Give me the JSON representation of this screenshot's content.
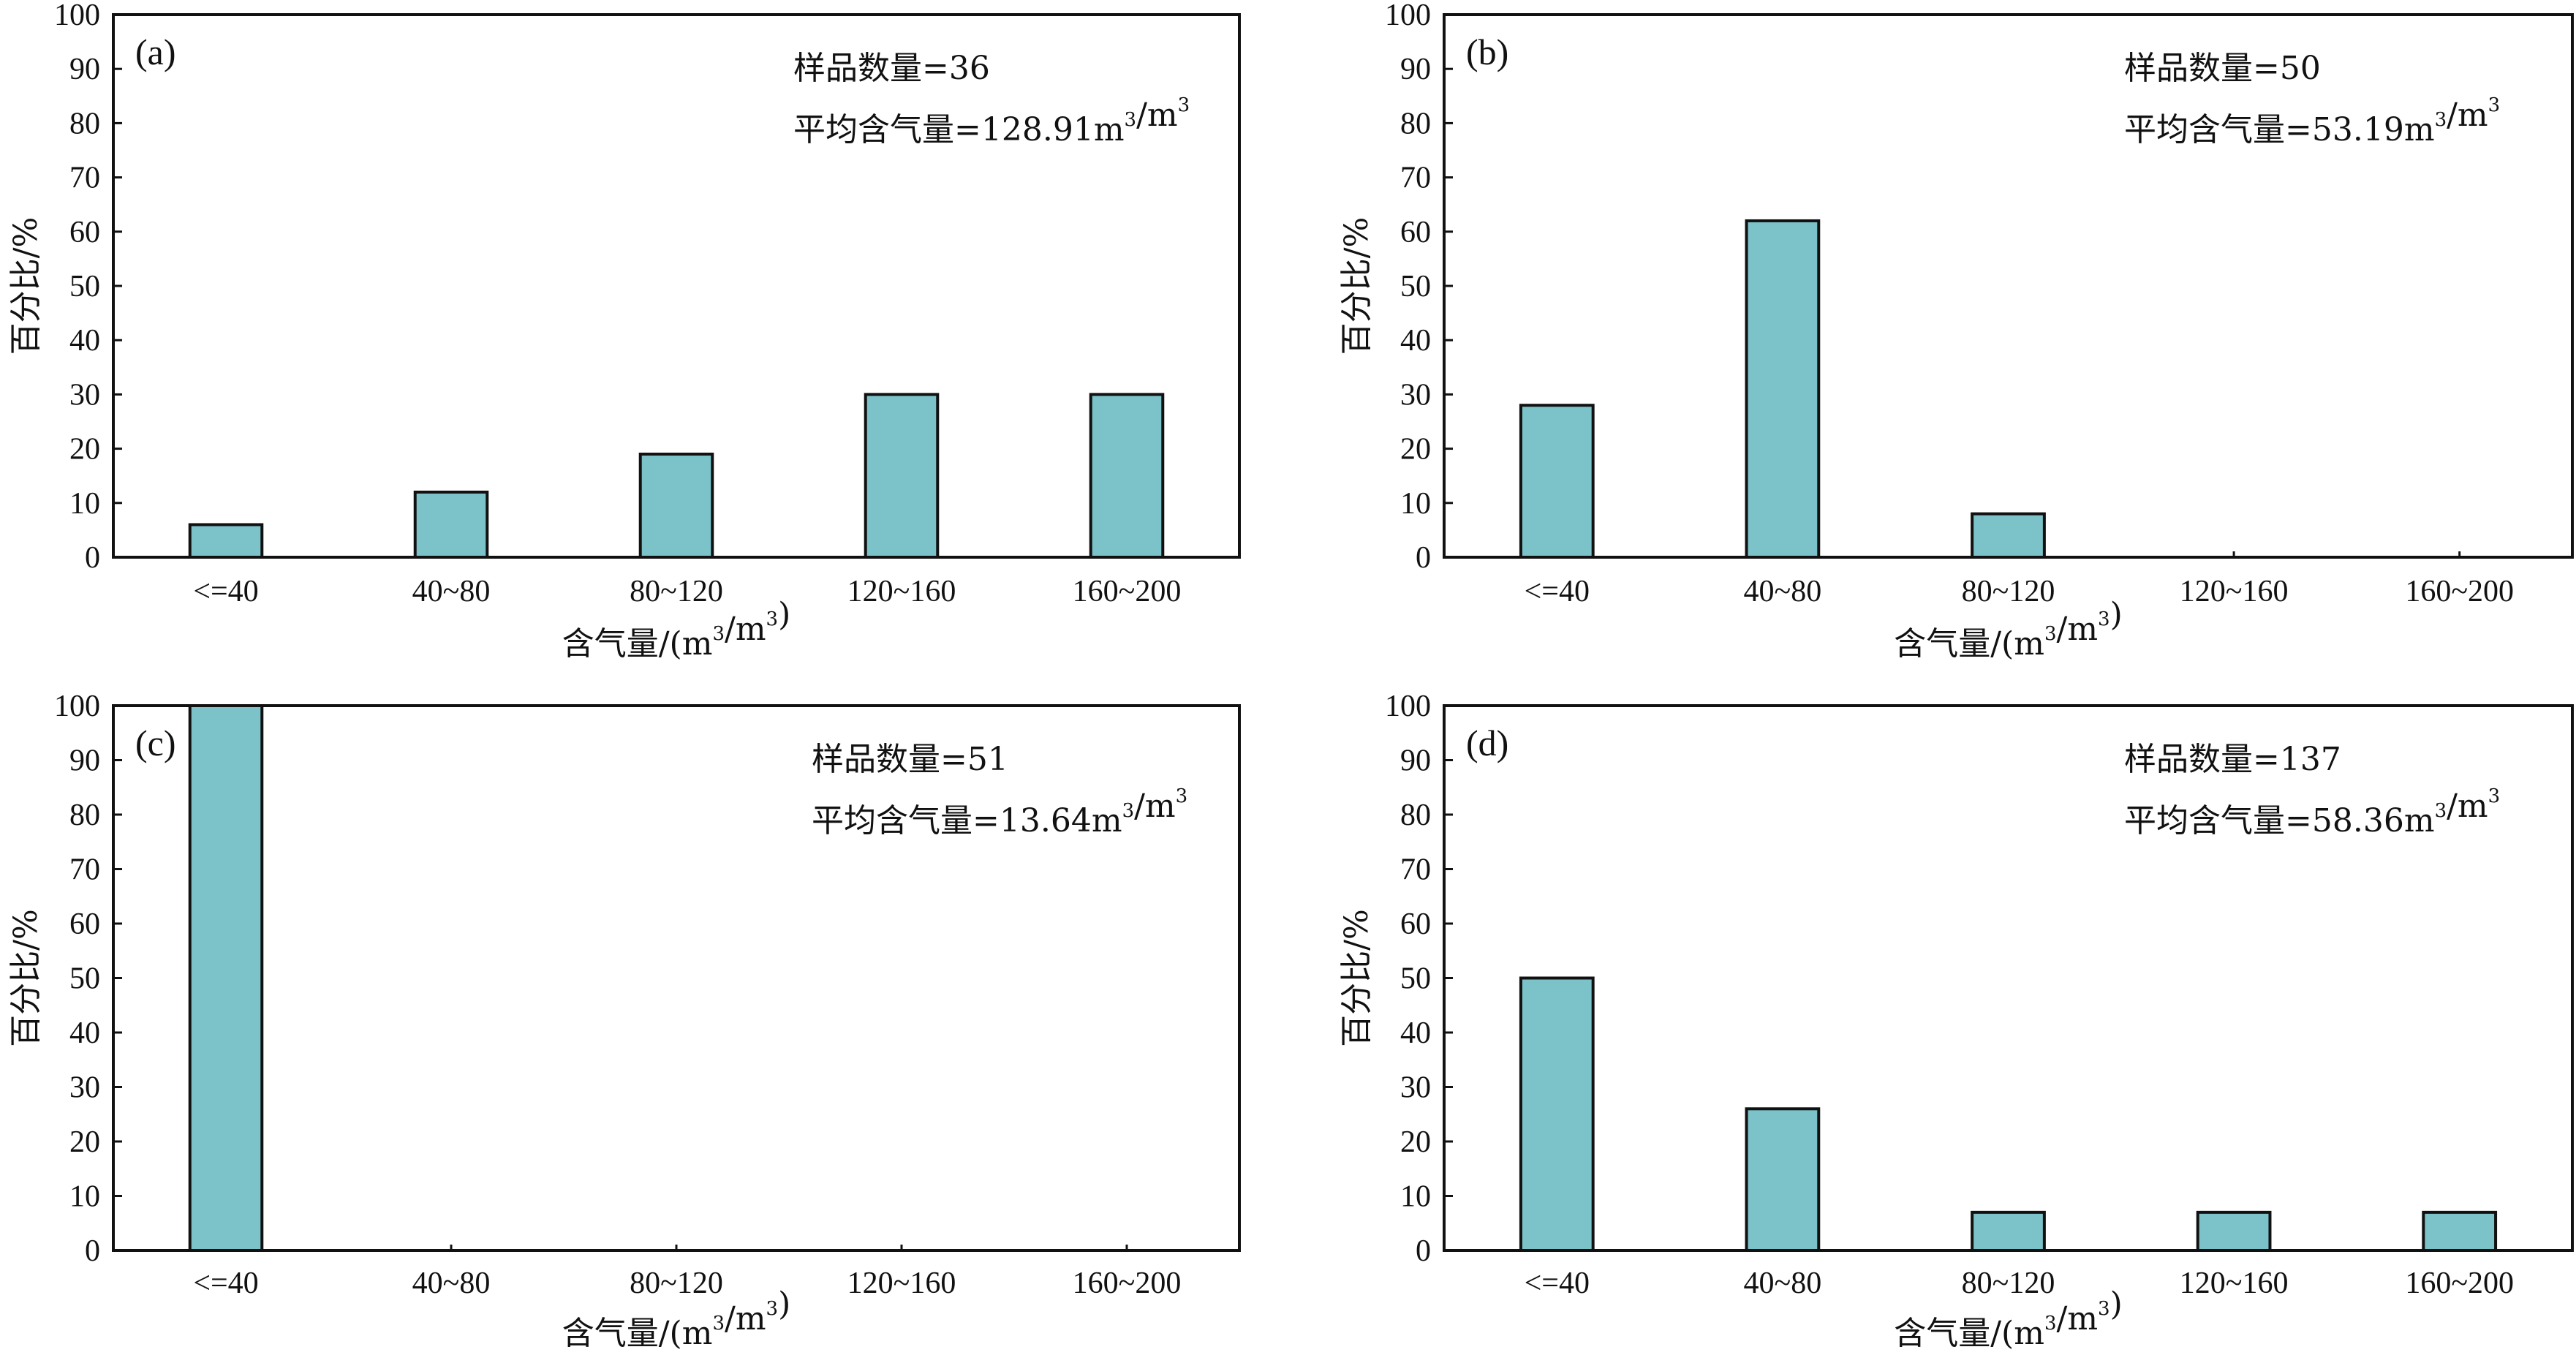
{
  "chart_data": [
    {
      "type": "bar",
      "panel_label": "(a)",
      "categories": [
        "<=40",
        "40~80",
        "80~120",
        "120~160",
        "160~200"
      ],
      "values": [
        6,
        12,
        19,
        30,
        30
      ],
      "ylim": [
        0,
        100
      ],
      "yticks": [
        "0",
        "10",
        "20",
        "30",
        "40",
        "50",
        "60",
        "70",
        "80",
        "90",
        "100"
      ],
      "xlabel": "含气量/(m³/m³)",
      "ylabel": "百分比/%",
      "annotations": {
        "sample_count": "样品数量=36",
        "avg_gas": "平均含气量=128.91m³/m³"
      }
    },
    {
      "type": "bar",
      "panel_label": "(b)",
      "categories": [
        "<=40",
        "40~80",
        "80~120",
        "120~160",
        "160~200"
      ],
      "values": [
        28,
        62,
        8,
        0,
        0
      ],
      "ylim": [
        0,
        100
      ],
      "yticks": [
        "0",
        "10",
        "20",
        "30",
        "40",
        "50",
        "60",
        "70",
        "80",
        "90",
        "100"
      ],
      "xlabel": "含气量/(m³/m³)",
      "ylabel": "百分比/%",
      "annotations": {
        "sample_count": "样品数量=50",
        "avg_gas": "平均含气量=53.19m³/m³"
      }
    },
    {
      "type": "bar",
      "panel_label": "(c)",
      "categories": [
        "<=40",
        "40~80",
        "80~120",
        "120~160",
        "160~200"
      ],
      "values": [
        100,
        0,
        0,
        0,
        0
      ],
      "ylim": [
        0,
        100
      ],
      "yticks": [
        "0",
        "10",
        "20",
        "30",
        "40",
        "50",
        "60",
        "70",
        "80",
        "90",
        "100"
      ],
      "xlabel": "含气量/(m³/m³)",
      "ylabel": "百分比/%",
      "annotations": {
        "sample_count": "样品数量=51",
        "avg_gas": "平均含气量=13.64m³/m³"
      }
    },
    {
      "type": "bar",
      "panel_label": "(d)",
      "categories": [
        "<=40",
        "40~80",
        "80~120",
        "120~160",
        "160~200"
      ],
      "values": [
        50,
        26,
        7,
        7,
        7
      ],
      "ylim": [
        0,
        100
      ],
      "yticks": [
        "0",
        "10",
        "20",
        "30",
        "40",
        "50",
        "60",
        "70",
        "80",
        "90",
        "100"
      ],
      "xlabel": "含气量/(m³/m³)",
      "ylabel": "百分比/%",
      "annotations": {
        "sample_count": "样品数量=137",
        "avg_gas": "平均含气量=58.36m³/m³"
      }
    }
  ],
  "style": {
    "bar_fill": "#7bc3c9",
    "bar_stroke": "#111111",
    "axis_color": "#111111",
    "background": "#ffffff"
  }
}
